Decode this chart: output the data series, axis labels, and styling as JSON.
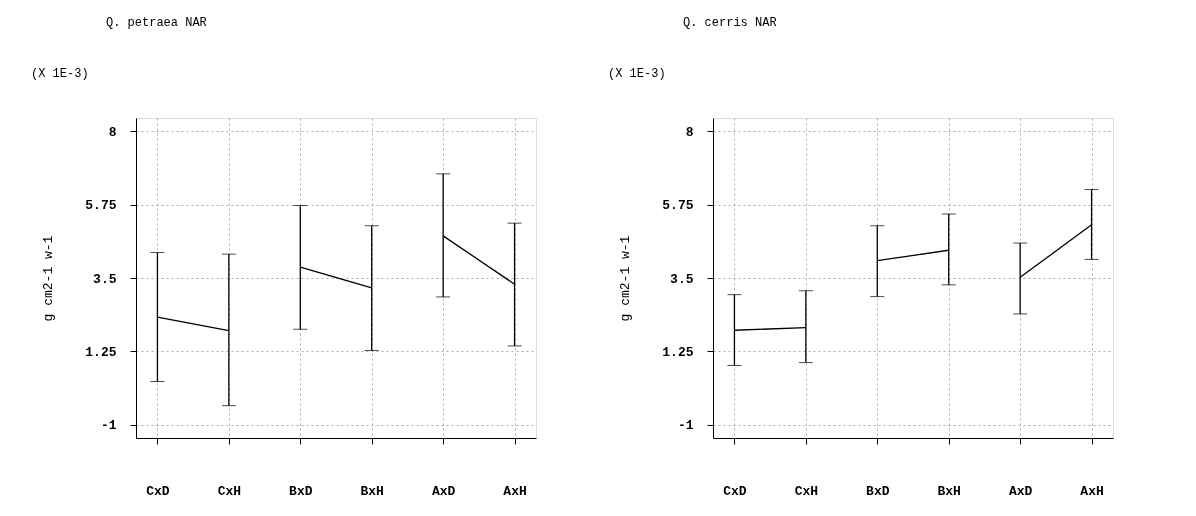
{
  "chart_data": [
    {
      "type": "line",
      "title": "Q. petraea NAR",
      "ylabel": "g cm2-1 w-1",
      "annotations": [
        "(X 1E-3)"
      ],
      "categories": [
        "CxD",
        "CxH",
        "BxD",
        "BxH",
        "AxD",
        "AxH"
      ],
      "series": [
        {
          "color": "#000000",
          "values": [
            2.3,
            1.89,
            null,
            null,
            null,
            null
          ],
          "errors": [
            [
              0.33,
              4.28
            ],
            [
              -0.41,
              4.23
            ],
            null,
            null,
            null,
            null
          ]
        },
        {
          "color": "#000000",
          "values": [
            null,
            null,
            3.83,
            3.2,
            null,
            null
          ],
          "errors": [
            null,
            null,
            [
              1.93,
              5.72
            ],
            [
              1.28,
              5.1
            ],
            null,
            null
          ]
        },
        {
          "color": "#000000",
          "values": [
            null,
            null,
            null,
            null,
            4.79,
            3.31
          ],
          "errors": [
            null,
            null,
            null,
            null,
            [
              2.92,
              6.69
            ],
            [
              1.42,
              5.18
            ]
          ]
        }
      ],
      "ylim": [
        -1.4,
        8.4
      ],
      "yticks": [
        8,
        5.75,
        3.5,
        1.25,
        -1
      ],
      "grid": true
    },
    {
      "type": "line",
      "title": "Q. cerris NAR",
      "ylabel": "g cm2-1 w-1",
      "annotations": [
        "(X 1E-3)"
      ],
      "categories": [
        "CxD",
        "CxH",
        "BxD",
        "BxH",
        "AxD",
        "AxH"
      ],
      "series": [
        {
          "color": "#000000",
          "values": [
            1.9,
            1.98,
            null,
            null,
            null,
            null
          ],
          "errors": [
            [
              0.82,
              2.99
            ],
            [
              0.91,
              3.11
            ],
            null,
            null,
            null,
            null
          ]
        },
        {
          "color": "#000000",
          "values": [
            null,
            null,
            4.03,
            4.35,
            null,
            null
          ],
          "errors": [
            null,
            null,
            [
              2.93,
              5.1
            ],
            [
              3.29,
              5.46
            ],
            null,
            null
          ]
        },
        {
          "color": "#000000",
          "values": [
            null,
            null,
            null,
            null,
            3.52,
            5.13
          ],
          "errors": [
            null,
            null,
            null,
            null,
            [
              2.4,
              4.57
            ],
            [
              4.07,
              6.21
            ]
          ]
        }
      ],
      "ylim": [
        -1.4,
        8.4
      ],
      "yticks": [
        8,
        5.75,
        3.5,
        1.25,
        -1
      ],
      "grid": true
    }
  ]
}
